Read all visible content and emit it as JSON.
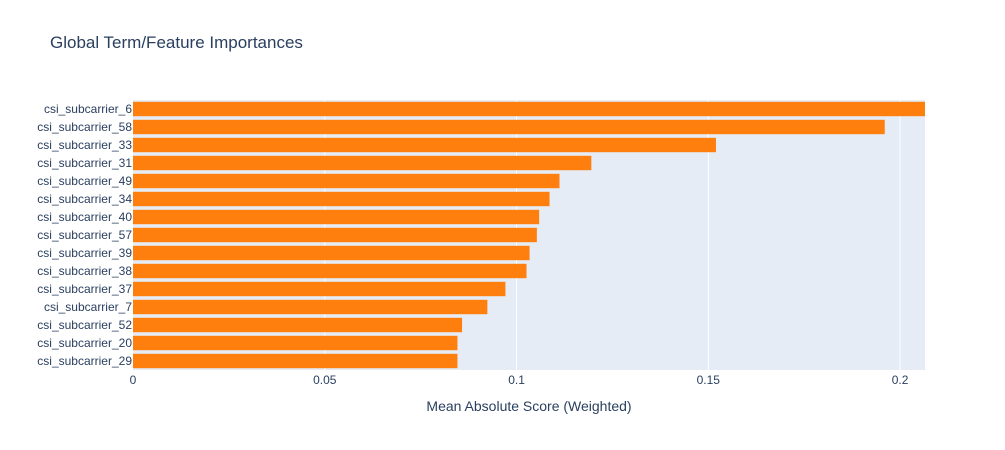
{
  "chart_data": {
    "type": "bar",
    "orientation": "horizontal",
    "title": "Global Term/Feature Importances",
    "xlabel": "Mean Absolute Score (Weighted)",
    "ylabel": "",
    "xlim": [
      0,
      0.2065
    ],
    "x_ticks": [
      0,
      0.05,
      0.1,
      0.15,
      0.2
    ],
    "x_tick_labels": [
      "0",
      "0.05",
      "0.1",
      "0.15",
      "0.2"
    ],
    "grid": true,
    "bar_color": "#ff7f0e",
    "plot_background": "#e5ecf6",
    "categories": [
      "csi_subcarrier_6",
      "csi_subcarrier_58",
      "csi_subcarrier_33",
      "csi_subcarrier_31",
      "csi_subcarrier_49",
      "csi_subcarrier_34",
      "csi_subcarrier_40",
      "csi_subcarrier_57",
      "csi_subcarrier_39",
      "csi_subcarrier_38",
      "csi_subcarrier_37",
      "csi_subcarrier_7",
      "csi_subcarrier_52",
      "csi_subcarrier_20",
      "csi_subcarrier_29"
    ],
    "values": [
      0.2065,
      0.196,
      0.152,
      0.1195,
      0.1112,
      0.1086,
      0.1059,
      0.1053,
      0.1034,
      0.1026,
      0.0971,
      0.0924,
      0.0858,
      0.0846,
      0.0846
    ]
  }
}
